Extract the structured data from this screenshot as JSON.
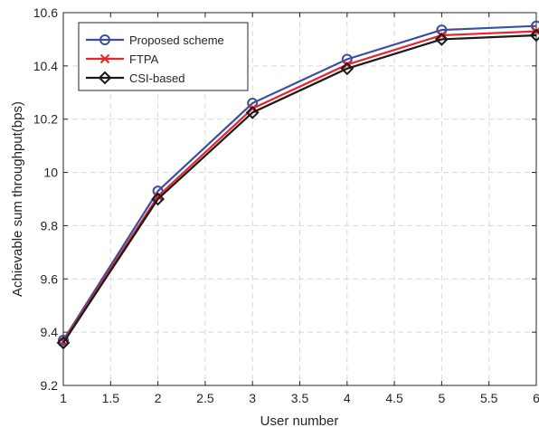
{
  "chart_data": {
    "type": "line",
    "xlabel": "User number",
    "ylabel": "Achievable sum throughput(bps)",
    "xlim": [
      1,
      6
    ],
    "ylim": [
      9.2,
      10.6
    ],
    "x_ticks": [
      "1",
      "1.5",
      "2",
      "2.5",
      "3",
      "3.5",
      "4",
      "4.5",
      "5",
      "5.5",
      "6"
    ],
    "y_ticks": [
      "9.2",
      "9.4",
      "9.6",
      "9.8",
      "10",
      "10.2",
      "10.4",
      "10.6"
    ],
    "grid": true,
    "legend_position": "top-left",
    "x": [
      1,
      2,
      3,
      4,
      5,
      6
    ],
    "series": [
      {
        "name": "Proposed scheme",
        "color": "#3a4fa3",
        "marker": "circle",
        "values": [
          9.37,
          9.93,
          10.26,
          10.425,
          10.535,
          10.55
        ]
      },
      {
        "name": "FTPA",
        "color": "#e8262a",
        "marker": "x",
        "values": [
          9.365,
          9.91,
          10.24,
          10.405,
          10.515,
          10.53
        ]
      },
      {
        "name": "CSI-based",
        "color": "#1a1a1a",
        "marker": "diamond",
        "values": [
          9.36,
          9.9,
          10.225,
          10.39,
          10.5,
          10.515
        ]
      }
    ]
  }
}
